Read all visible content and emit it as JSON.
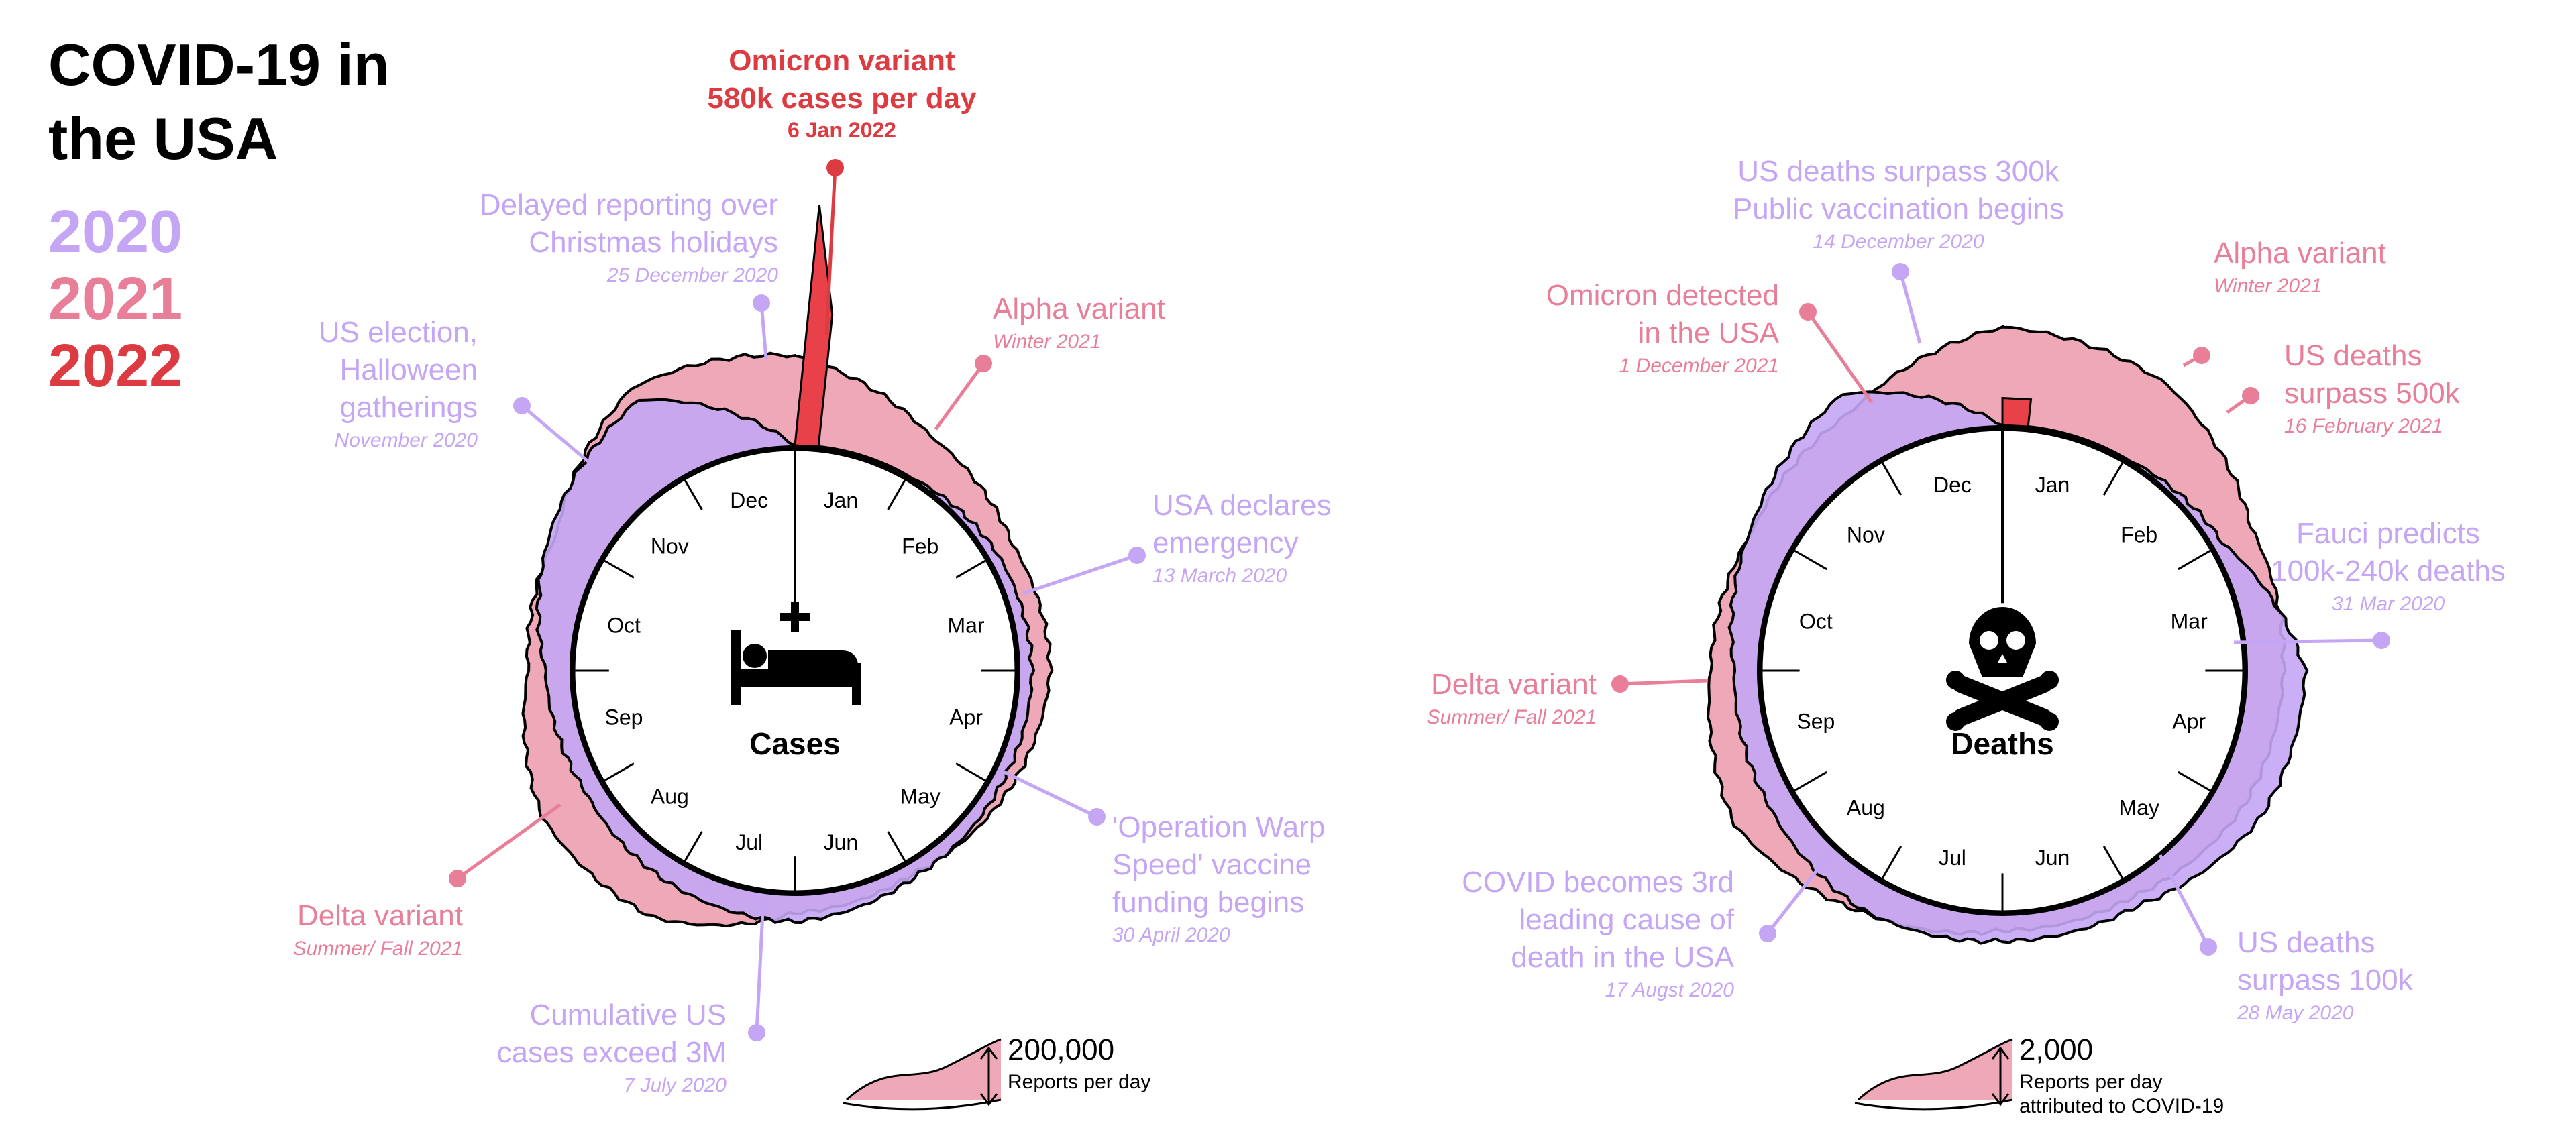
{
  "title_line1": "COVID-19 in",
  "title_line2": "the USA",
  "years": [
    {
      "label": "2020",
      "color": "#c4a6f5"
    },
    {
      "label": "2021",
      "color": "#e87e98"
    },
    {
      "label": "2022",
      "color": "#dd3b42"
    }
  ],
  "chart_data": [
    {
      "type": "area",
      "subtype": "radial",
      "center_label": "Cases",
      "center_icon": "hospital-bed-icon",
      "months": [
        "Jan",
        "Feb",
        "Mar",
        "Apr",
        "May",
        "Jun",
        "Jul",
        "Aug",
        "Sep",
        "Oct",
        "Nov",
        "Dec"
      ],
      "series": [
        {
          "name": "2020",
          "values": [
            0,
            0,
            20,
            28,
            24,
            32,
            62,
            52,
            40,
            58,
            135,
            210
          ]
        },
        {
          "name": "2021",
          "values": [
            215,
            110,
            58,
            65,
            40,
            15,
            25,
            130,
            150,
            85,
            85,
            190
          ]
        },
        {
          "name": "2022",
          "values": [
            580
          ]
        }
      ],
      "scale_legend": {
        "value": "200,000",
        "unit": "Reports per day"
      },
      "annotations": [
        {
          "title": "Omicron variant",
          "title2": "580k cases per day",
          "date": "6 Jan 2022",
          "year": "2022"
        },
        {
          "title": "Delayed reporting over",
          "title2": "Christmas holidays",
          "date": "25 December 2020",
          "year": "2020"
        },
        {
          "title": "US election,",
          "title2": "Halloween",
          "title3": "gatherings",
          "date": "November 2020",
          "year": "2020"
        },
        {
          "title": "Alpha variant",
          "date": "Winter 2021",
          "year": "2021"
        },
        {
          "title": "USA declares",
          "title2": "emergency",
          "date": "13 March 2020",
          "year": "2020"
        },
        {
          "title": "'Operation Warp",
          "title2": "Speed' vaccine",
          "title3": "funding begins",
          "date": "30 April 2020",
          "year": "2020"
        },
        {
          "title": "Cumulative US",
          "title2": "cases exceed 3M",
          "date": "7 July 2020",
          "year": "2020"
        },
        {
          "title": "Delta variant",
          "date": "Summer/ Fall 2021",
          "year": "2021"
        }
      ]
    },
    {
      "type": "area",
      "subtype": "radial",
      "center_label": "Deaths",
      "center_icon": "skull-crossbones-icon",
      "months": [
        "Jan",
        "Feb",
        "Mar",
        "Apr",
        "May",
        "Jun",
        "Jul",
        "Aug",
        "Sep",
        "Oct",
        "Nov",
        "Dec"
      ],
      "series": [
        {
          "name": "2020",
          "values": [
            0,
            0,
            300,
            1900,
            1700,
            850,
            820,
            1050,
            800,
            750,
            1450,
            2450
          ]
        },
        {
          "name": "2021",
          "values": [
            3250,
            2800,
            1300,
            700,
            600,
            300,
            270,
            850,
            1900,
            1350,
            1000,
            1200
          ]
        },
        {
          "name": "2022",
          "values": [
            1500
          ]
        }
      ],
      "scale_legend": {
        "value": "2,000",
        "unit": "Reports per day",
        "unit2": "attributed to COVID-19"
      },
      "annotations": [
        {
          "title": "US deaths surpass 300k",
          "title2": "Public vaccination begins",
          "date": "14 December 2020",
          "year": "2020"
        },
        {
          "title": "Omicron detected",
          "title2": "in the USA",
          "date": "1 December 2021",
          "year": "2021"
        },
        {
          "title": "Alpha variant",
          "date": "Winter 2021",
          "year": "2021"
        },
        {
          "title": "US deaths",
          "title2": "surpass 500k",
          "date": "16 February 2021",
          "year": "2021"
        },
        {
          "title": "Fauci predicts",
          "title2": "100k-240k deaths",
          "date": "31 Mar 2020",
          "year": "2020"
        },
        {
          "title": "Delta variant",
          "date": "Summer/ Fall 2021",
          "year": "2021"
        },
        {
          "title": "COVID becomes 3rd",
          "title2": "leading cause of",
          "title3": "death in the USA",
          "date": "17 Augst 2020",
          "year": "2020"
        },
        {
          "title": "US deaths",
          "title2": "surpass 100k",
          "date": "28 May 2020",
          "year": "2020"
        }
      ]
    }
  ]
}
